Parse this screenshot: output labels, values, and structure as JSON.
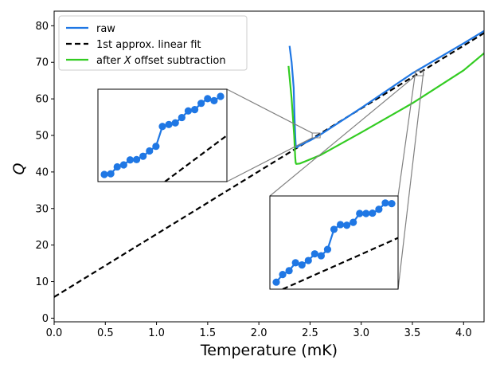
{
  "chart_data": {
    "type": "line",
    "title": "",
    "xlabel": "Temperature (mK)",
    "ylabel": "Q",
    "xlim": [
      0.0,
      4.2
    ],
    "ylim": [
      -1,
      84
    ],
    "xticks": [
      0.0,
      0.5,
      1.0,
      1.5,
      2.0,
      2.5,
      3.0,
      3.5,
      4.0
    ],
    "xtick_labels": [
      "0.0",
      "0.5",
      "1.0",
      "1.5",
      "2.0",
      "2.5",
      "3.0",
      "3.5",
      "4.0"
    ],
    "yticks": [
      0,
      10,
      20,
      30,
      40,
      50,
      60,
      70,
      80
    ],
    "ytick_labels": [
      "0",
      "10",
      "20",
      "30",
      "40",
      "50",
      "60",
      "70",
      "80"
    ],
    "legend": {
      "placement": "upper-left",
      "entries": [
        {
          "label": "raw",
          "color": "#1f77e4",
          "style": "solid"
        },
        {
          "label": "1st approx. linear fit",
          "color": "#000000",
          "style": "dashed"
        },
        {
          "label_prefix": "after ",
          "label_italic": "X",
          "label_suffix": " offset subtraction",
          "color": "#33cc22",
          "style": "solid"
        }
      ]
    },
    "series": [
      {
        "name": "raw",
        "color": "#1f77e4",
        "x": [
          2.3,
          2.32,
          2.34,
          2.345,
          2.35,
          2.355,
          2.36,
          2.365,
          2.37,
          2.4,
          2.5,
          2.6,
          3.0,
          3.5,
          4.0,
          4.2
        ],
        "y": [
          74.5,
          70,
          63,
          58,
          54,
          50,
          47.5,
          46.8,
          46.7,
          47.3,
          48.6,
          50.2,
          57.5,
          67.0,
          75.2,
          78.6
        ]
      },
      {
        "name": "1st approx. linear fit",
        "color": "#000000",
        "x": [
          0.0,
          4.2
        ],
        "y": [
          5.8,
          78.0
        ]
      },
      {
        "name": "after X offset subtraction",
        "color": "#33cc22",
        "x": [
          2.29,
          2.32,
          2.345,
          2.355,
          2.36,
          2.365,
          2.4,
          2.6,
          3.0,
          3.5,
          4.0,
          4.2
        ],
        "y": [
          69.0,
          60,
          50,
          44,
          42.5,
          42.2,
          42.3,
          44.6,
          50.8,
          58.8,
          67.8,
          72.5
        ]
      }
    ],
    "insets": [
      {
        "name": "upper-inset",
        "zoom_anchor": {
          "x": 2.56,
          "y": 50
        },
        "dots": [
          38.5,
          38.7,
          40.8,
          41.4,
          42.9,
          43.0,
          44.0,
          45.6,
          47.0,
          53.0,
          53.6,
          54.1,
          55.7,
          57.7,
          58.1,
          60.0,
          61.4,
          60.8,
          62.1
        ],
        "fit_start": [
          0.52,
          0.0
        ],
        "fit_end": [
          1.0,
          0.5
        ]
      },
      {
        "name": "lower-inset",
        "zoom_anchor": {
          "x": 3.57,
          "y": 67
        },
        "dots": [
          7.2,
          9.6,
          10.8,
          13.3,
          12.6,
          14.0,
          16.1,
          15.5,
          17.5,
          23.8,
          25.3,
          25.1,
          26.0,
          28.8,
          28.8,
          28.9,
          30.1,
          32.1,
          31.9
        ],
        "fit_start": [
          0.1,
          0.0
        ],
        "fit_end": [
          1.0,
          0.55
        ]
      }
    ]
  }
}
